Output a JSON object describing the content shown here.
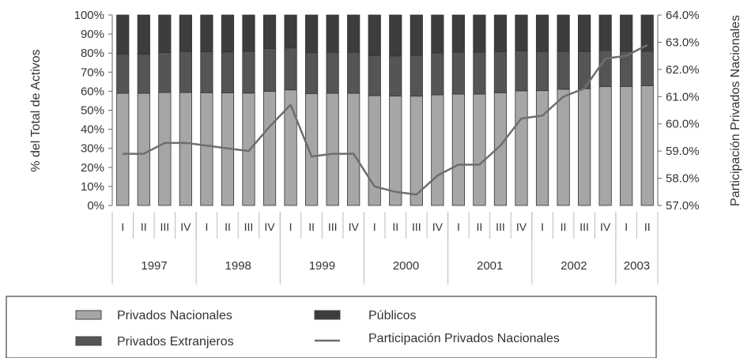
{
  "chart_data": {
    "type": "bar",
    "stacked": true,
    "ylabel_left": "% del Total de Activos",
    "ylabel_right": "Participación Privados Nacionales",
    "ylim_left": [
      0,
      100
    ],
    "ylim_right": [
      57.0,
      64.0
    ],
    "y_ticks_left": [
      "0%",
      "10%",
      "20%",
      "30%",
      "40%",
      "50%",
      "60%",
      "70%",
      "80%",
      "90%",
      "100%"
    ],
    "y_ticks_right": [
      "57.0%",
      "58.0%",
      "59.0%",
      "60.0%",
      "61.0%",
      "62.0%",
      "63.0%",
      "64.0%"
    ],
    "quarters": [
      "I",
      "II",
      "III",
      "IV",
      "I",
      "II",
      "III",
      "IV",
      "I",
      "II",
      "III",
      "IV",
      "I",
      "II",
      "III",
      "IV",
      "I",
      "II",
      "III",
      "IV",
      "I",
      "II",
      "III",
      "IV",
      "I",
      "II"
    ],
    "years": [
      {
        "label": "1997",
        "quarters": 4
      },
      {
        "label": "1998",
        "quarters": 4
      },
      {
        "label": "1999",
        "quarters": 4
      },
      {
        "label": "2000",
        "quarters": 4
      },
      {
        "label": "2001",
        "quarters": 4
      },
      {
        "label": "2002",
        "quarters": 4
      },
      {
        "label": "2003",
        "quarters": 2
      }
    ],
    "series": [
      {
        "name": "Privados Nacionales",
        "axis": "left",
        "color": "#a6a6a6",
        "values": [
          58.9,
          58.9,
          59.3,
          59.3,
          59.2,
          59.1,
          59.0,
          59.9,
          60.7,
          58.8,
          58.9,
          58.9,
          57.7,
          57.5,
          57.4,
          58.1,
          58.5,
          58.5,
          59.2,
          60.2,
          60.3,
          61.0,
          61.3,
          62.4,
          62.5,
          62.9
        ]
      },
      {
        "name": "Privados Extranjeros",
        "axis": "left",
        "color": "#555555",
        "values": [
          20.5,
          20.5,
          21.0,
          21.5,
          21.5,
          21.5,
          22.0,
          22.5,
          22.0,
          21.5,
          21.5,
          21.5,
          21.0,
          21.0,
          21.5,
          22.0,
          22.0,
          22.0,
          21.5,
          21.0,
          20.5,
          20.0,
          19.5,
          19.0,
          18.5,
          18.0
        ]
      },
      {
        "name": "Públicos",
        "axis": "left",
        "color": "#3d3d3d",
        "values": [
          20.6,
          20.6,
          19.7,
          19.2,
          19.3,
          19.4,
          19.0,
          17.6,
          17.3,
          19.7,
          19.6,
          19.6,
          21.3,
          21.5,
          21.1,
          19.9,
          19.5,
          19.5,
          19.3,
          18.8,
          19.2,
          19.0,
          19.2,
          18.6,
          19.0,
          19.1
        ]
      },
      {
        "name": "Participación Privados Nacionales",
        "axis": "right",
        "type": "line",
        "color": "#6e6e6e",
        "values": [
          58.9,
          58.9,
          59.3,
          59.3,
          59.2,
          59.1,
          59.0,
          59.9,
          60.7,
          58.8,
          58.9,
          58.9,
          57.7,
          57.5,
          57.4,
          58.1,
          58.5,
          58.5,
          59.2,
          60.2,
          60.3,
          61.0,
          61.3,
          62.4,
          62.5,
          62.9
        ]
      }
    ],
    "legend": {
      "position": "bottom",
      "items": [
        {
          "label": "Privados Nacionales",
          "symbol": "bar",
          "color": "#a6a6a6"
        },
        {
          "label": "Públicos",
          "symbol": "bar",
          "color": "#3d3d3d"
        },
        {
          "label": "Privados Extranjeros",
          "symbol": "bar",
          "color": "#555555"
        },
        {
          "label": "Participación Privados Nacionales",
          "symbol": "line",
          "color": "#6e6e6e"
        }
      ]
    }
  }
}
